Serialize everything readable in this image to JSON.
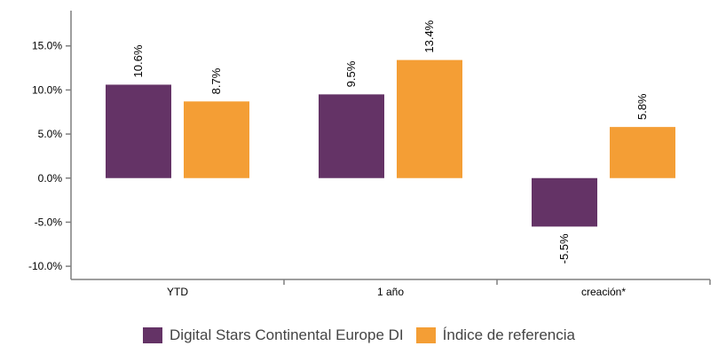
{
  "chart_data": {
    "type": "bar",
    "categories": [
      "YTD",
      "1 año",
      "creación*"
    ],
    "series": [
      {
        "name": "Digital Stars Continental Europe DI",
        "color": "#643366",
        "values": [
          10.6,
          9.5,
          -5.5
        ]
      },
      {
        "name": "Índice de referencia",
        "color": "#F49E35",
        "values": [
          8.7,
          13.4,
          5.8
        ]
      }
    ],
    "data_labels": [
      [
        "10.6%",
        "9.5%",
        "-5.5%"
      ],
      [
        "8.7%",
        "13.4%",
        "5.8%"
      ]
    ],
    "yticks": [
      -10,
      -5,
      0,
      5,
      10,
      15
    ],
    "ytick_labels": [
      "-10.0%",
      "-5.0%",
      "0.0%",
      "5.0%",
      "10.0%",
      "15.0%"
    ],
    "ylim": [
      -11.5,
      19
    ],
    "title": "",
    "xlabel": "",
    "ylabel": "",
    "grid": false,
    "legend_position": "bottom",
    "axis_color": "#7f7f7f"
  }
}
